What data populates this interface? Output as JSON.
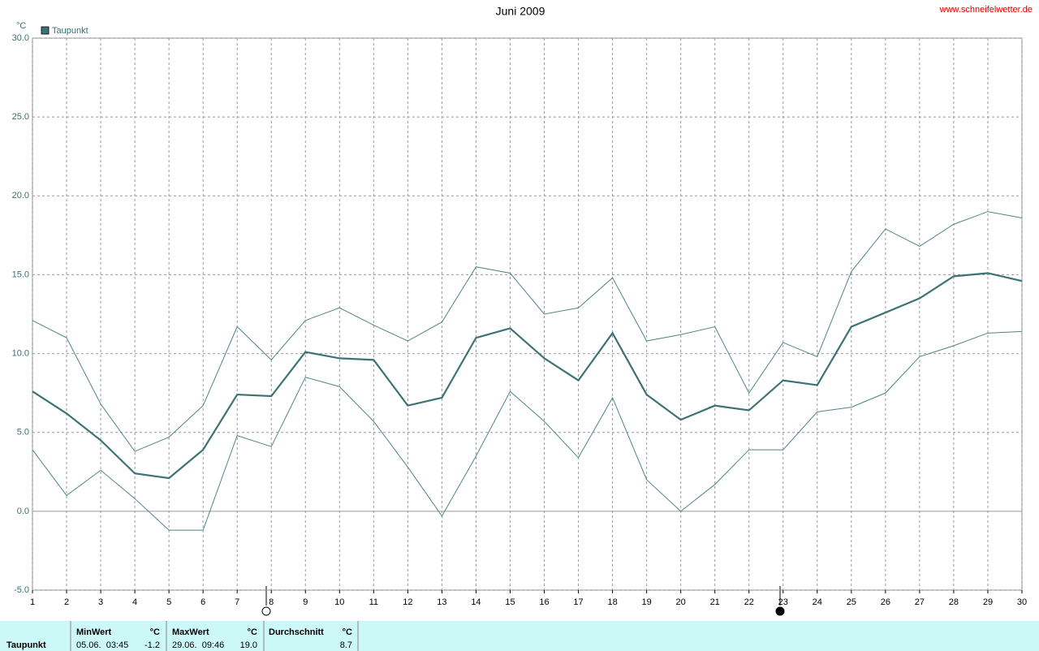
{
  "chart_data": {
    "type": "line",
    "title": "Juni 2009",
    "source": "www.schneifelwetter.de",
    "y_unit": "°C",
    "x": [
      1,
      2,
      3,
      4,
      5,
      6,
      7,
      8,
      9,
      10,
      11,
      12,
      13,
      14,
      15,
      16,
      17,
      18,
      19,
      20,
      21,
      22,
      23,
      24,
      25,
      26,
      27,
      28,
      29,
      30
    ],
    "xlim": [
      1,
      30
    ],
    "xticks": [
      1,
      2,
      3,
      4,
      5,
      6,
      7,
      8,
      9,
      10,
      11,
      12,
      13,
      14,
      15,
      16,
      17,
      18,
      19,
      20,
      21,
      22,
      23,
      24,
      25,
      26,
      27,
      28,
      29,
      30
    ],
    "ylim": [
      -5,
      30
    ],
    "yticks": [
      {
        "value": -5,
        "label": "-5.0"
      },
      {
        "value": 0,
        "label": "0.0"
      },
      {
        "value": 5,
        "label": "5.0"
      },
      {
        "value": 10,
        "label": "10.0"
      },
      {
        "value": 15,
        "label": "15.0"
      },
      {
        "value": 20,
        "label": "20.0"
      },
      {
        "value": 25,
        "label": "25.0"
      },
      {
        "value": 30,
        "label": "30.0"
      }
    ],
    "grid": true,
    "legend": "top-left",
    "series": [
      {
        "name": "Taupunkt",
        "color": "#3d7373",
        "linewidth": 2.2,
        "values": [
          7.6,
          6.2,
          4.5,
          2.4,
          2.1,
          3.9,
          7.4,
          7.3,
          10.1,
          9.7,
          9.6,
          6.7,
          7.2,
          11.0,
          11.6,
          9.7,
          8.3,
          11.3,
          7.4,
          5.8,
          6.7,
          6.4,
          8.3,
          8.0,
          11.7,
          12.6,
          13.5,
          14.9,
          15.1,
          14.6
        ]
      },
      {
        "color": "#4f8585",
        "linewidth": 1,
        "values": [
          12.1,
          11.0,
          6.8,
          3.8,
          4.7,
          6.7,
          11.7,
          9.6,
          12.1,
          12.9,
          11.8,
          10.8,
          12.0,
          15.5,
          15.1,
          12.5,
          12.9,
          14.8,
          10.8,
          11.2,
          11.7,
          7.5,
          10.7,
          9.8,
          15.2,
          17.9,
          16.8,
          18.2,
          19.0,
          18.6
        ]
      },
      {
        "color": "#4f8585",
        "linewidth": 1,
        "values": [
          3.9,
          1.0,
          2.6,
          0.8,
          -1.2,
          -1.2,
          4.8,
          4.1,
          8.5,
          7.9,
          5.7,
          2.8,
          -0.3,
          3.5,
          7.6,
          5.7,
          3.4,
          7.2,
          2.0,
          0.0,
          1.7,
          3.9,
          3.9,
          6.3,
          6.6,
          7.5,
          9.8,
          10.5,
          11.3,
          11.4
        ]
      }
    ]
  },
  "stats_table": {
    "row_label": "Taupunkt",
    "columns": [
      {
        "header": "MinWert",
        "unit": "°C",
        "time": "05.06.  03:45",
        "value": "-1.2"
      },
      {
        "header": "MaxWert",
        "unit": "°C",
        "time": "29.06.  09:46",
        "value": "19.0"
      },
      {
        "header": "Durchschnitt",
        "unit": "°C",
        "time": "",
        "value": "8.7"
      }
    ]
  }
}
